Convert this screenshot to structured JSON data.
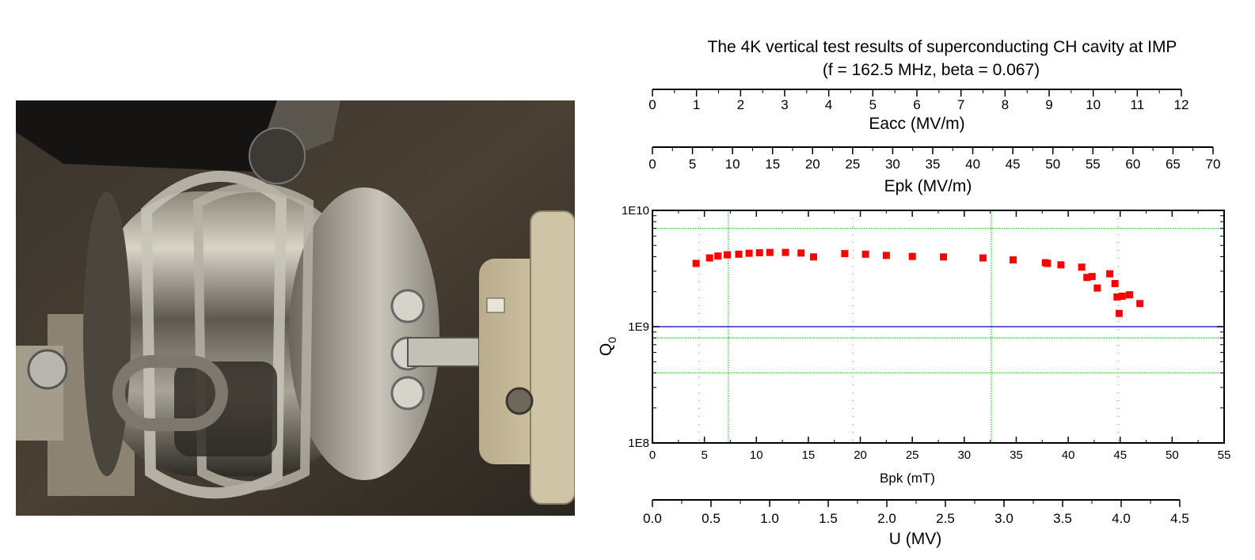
{
  "photo": {
    "subject": "superconducting-ch-cavity-photo"
  },
  "chart_data": {
    "type": "scatter",
    "title": "The 4K vertical test results of superconducting CH cavity at IMP",
    "subtitle": "(f = 162.5 MHz, beta = 0.067)",
    "xlabel": "Bpk (mT)",
    "ylabel": "Q0",
    "ylabel_main": "Q",
    "ylabel_sub": "0",
    "xlim": [
      0,
      55
    ],
    "ylim": [
      100000000,
      10000000000
    ],
    "yscale": "log",
    "x_ticks": [
      "0",
      "5",
      "10",
      "15",
      "20",
      "25",
      "30",
      "35",
      "40",
      "45",
      "50",
      "55"
    ],
    "y_ticks": [
      "1E8",
      "1E9",
      "1E10"
    ],
    "grid": true,
    "reference_line": {
      "y": 1000000000,
      "color": "#0000cc"
    },
    "marker_color": "#ff0000",
    "series": [
      {
        "x": [
          4.2,
          5.5,
          6.3,
          7.2,
          8.3,
          9.3,
          10.3,
          11.3,
          12.8,
          14.3,
          15.5,
          18.5,
          20.5,
          22.5,
          25.0,
          28.0,
          31.8,
          34.7,
          37.8,
          38.0,
          39.3,
          41.3,
          41.8,
          42.3,
          42.8,
          44.0,
          44.5,
          44.7,
          44.9,
          45.2,
          45.9,
          46.9
        ],
        "y": [
          3500000000,
          3900000000,
          4050000000,
          4150000000,
          4200000000,
          4280000000,
          4320000000,
          4350000000,
          4350000000,
          4300000000,
          3980000000,
          4250000000,
          4200000000,
          4100000000,
          4020000000,
          3980000000,
          3900000000,
          3750000000,
          3550000000,
          3500000000,
          3400000000,
          3250000000,
          2650000000,
          2700000000,
          2150000000,
          2850000000,
          2350000000,
          1800000000,
          1300000000,
          1830000000,
          1880000000,
          1580000000
        ]
      }
    ],
    "secondary_axes": [
      {
        "label": "Eacc (MV/m)",
        "min": 0,
        "max": 12,
        "ticks": [
          "0",
          "1",
          "2",
          "3",
          "4",
          "5",
          "6",
          "7",
          "8",
          "9",
          "10",
          "11",
          "12"
        ]
      },
      {
        "label": "Epk (MV/m)",
        "min": 0,
        "max": 70,
        "ticks": [
          "0",
          "5",
          "10",
          "15",
          "20",
          "25",
          "30",
          "35",
          "40",
          "45",
          "50",
          "55",
          "60",
          "65",
          "70"
        ]
      },
      {
        "label": "U (MV)",
        "min": 0,
        "max": 4.5,
        "ticks": [
          "0.0",
          "0.5",
          "1.0",
          "1.5",
          "2.0",
          "2.5",
          "3.0",
          "3.5",
          "4.0",
          "4.5"
        ]
      }
    ]
  }
}
